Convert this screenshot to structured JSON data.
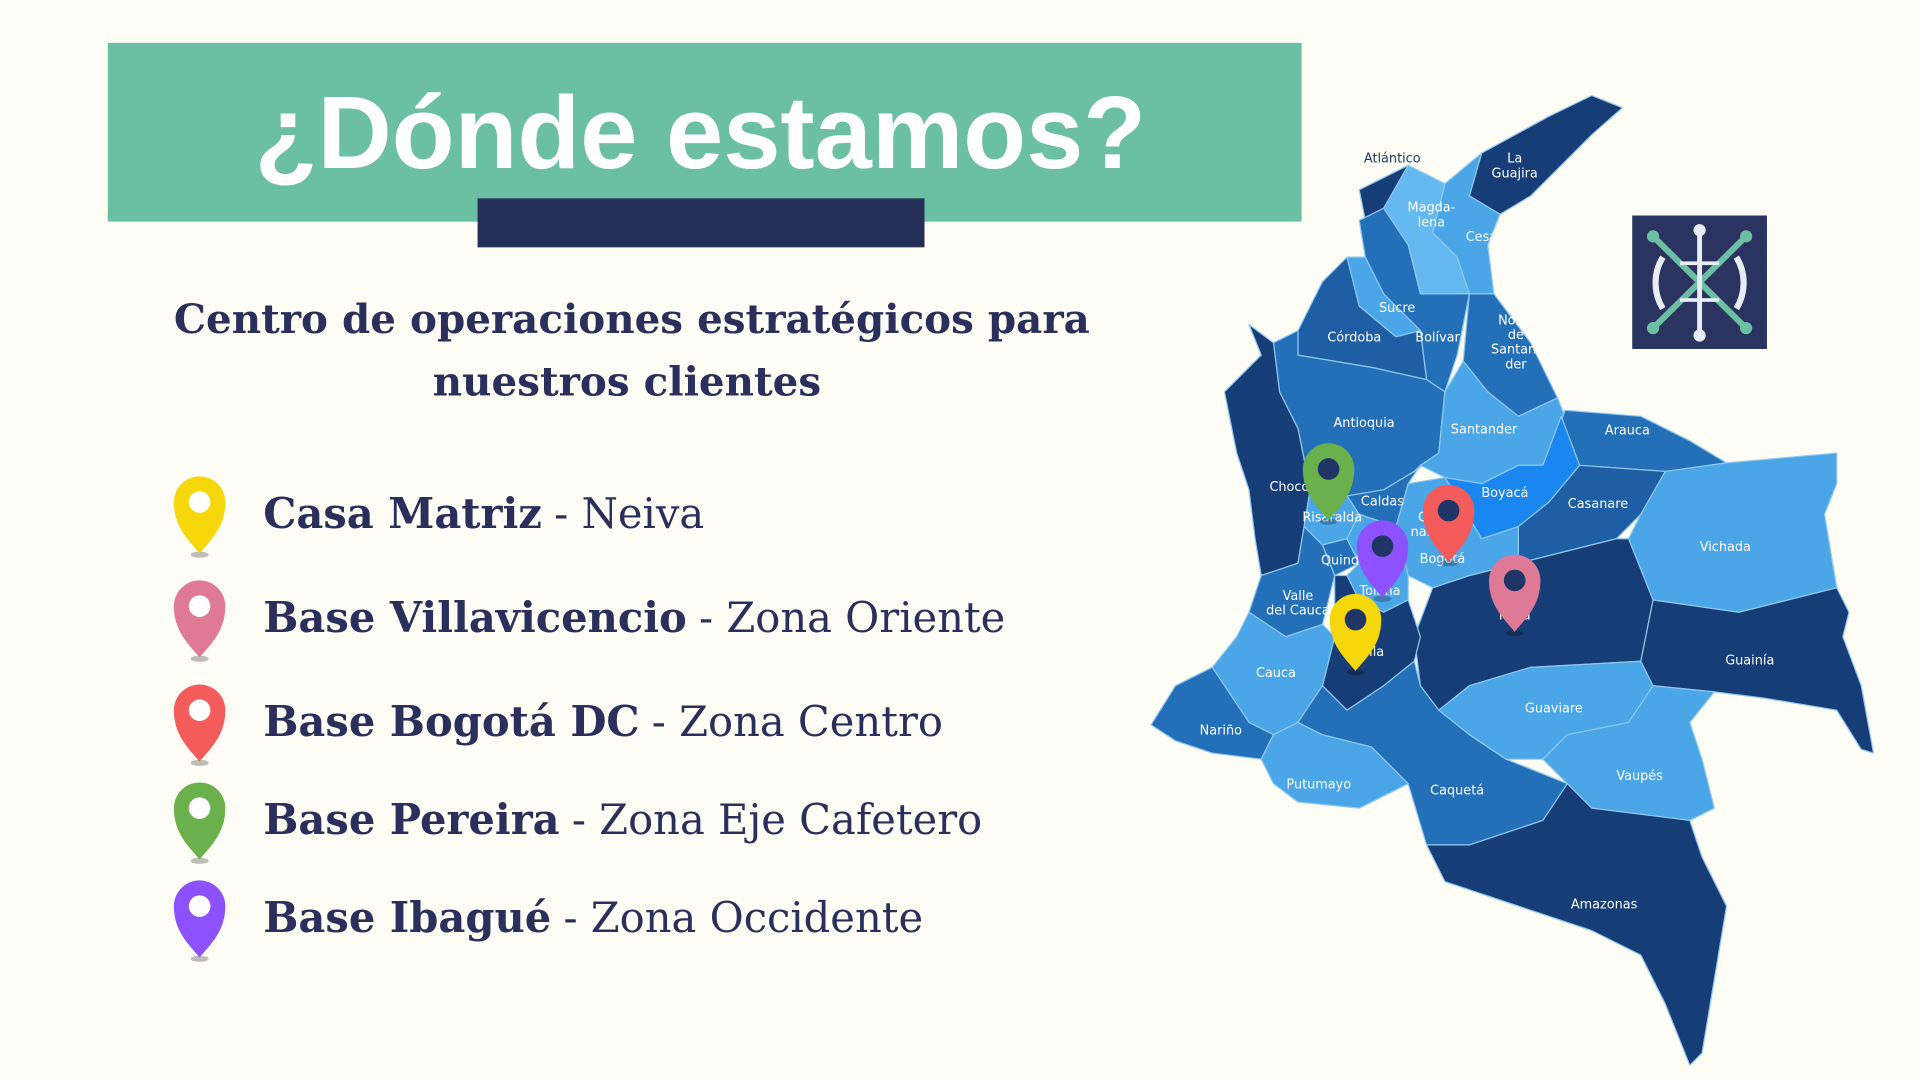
{
  "title": "¿Dónde estamos?",
  "subtitle": [
    "Centro de operaciones estratégicos para",
    "nuestros clientes"
  ],
  "locations": [
    {
      "name": "Casa Matriz",
      "detail": "- Neiva",
      "color": "#f5d70c"
    },
    {
      "name": "Base Villavicencio",
      "detail": "- Zona Oriente",
      "color": "#df7a96"
    },
    {
      "name": "Base Bogotá DC",
      "detail": "- Zona Centro",
      "color": "#f45b5b"
    },
    {
      "name": "Base Pereira",
      "detail": "- Zona Eje Cafetero",
      "color": "#6ab04c"
    },
    {
      "name": "Base Ibagué",
      "detail": "- Zona Occidente",
      "color": "#8c52ff"
    }
  ],
  "map": {
    "labels": [
      {
        "lines": [
          "Atlántico"
        ],
        "color": "#24386b"
      },
      {
        "lines": [
          "La",
          "Guajira"
        ]
      },
      {
        "lines": [
          "Magda-",
          "lena"
        ]
      },
      {
        "lines": [
          "Cesar"
        ]
      },
      {
        "lines": [
          "Sucre"
        ]
      },
      {
        "lines": [
          "Córdoba"
        ]
      },
      {
        "lines": [
          "Bolívar"
        ]
      },
      {
        "lines": [
          "Norte",
          "de",
          "Santan-",
          "der"
        ]
      },
      {
        "lines": [
          "Antioquia"
        ]
      },
      {
        "lines": [
          "Santander"
        ]
      },
      {
        "lines": [
          "Arauca"
        ]
      },
      {
        "lines": [
          "Chocó"
        ]
      },
      {
        "lines": [
          "Boyacá"
        ]
      },
      {
        "lines": [
          "Caldas"
        ]
      },
      {
        "lines": [
          "Casanare"
        ]
      },
      {
        "lines": [
          "Risaralda"
        ]
      },
      {
        "lines": [
          "Cundi-",
          "namarca"
        ]
      },
      {
        "lines": [
          "Vichada"
        ]
      },
      {
        "lines": [
          "Quindío"
        ]
      },
      {
        "lines": [
          "Bogotá"
        ]
      },
      {
        "lines": [
          "Tolima"
        ]
      },
      {
        "lines": [
          "Valle",
          "del Cauca"
        ]
      },
      {
        "lines": [
          "Meta"
        ]
      },
      {
        "lines": [
          "Huila"
        ]
      },
      {
        "lines": [
          "Guainía"
        ]
      },
      {
        "lines": [
          "Cauca"
        ]
      },
      {
        "lines": [
          "Guaviare"
        ]
      },
      {
        "lines": [
          "Nariño"
        ]
      },
      {
        "lines": [
          "Vaupés"
        ]
      },
      {
        "lines": [
          "Putumayo"
        ]
      },
      {
        "lines": [
          "Caquetá"
        ]
      },
      {
        "lines": [
          "Amazonas"
        ]
      }
    ]
  }
}
